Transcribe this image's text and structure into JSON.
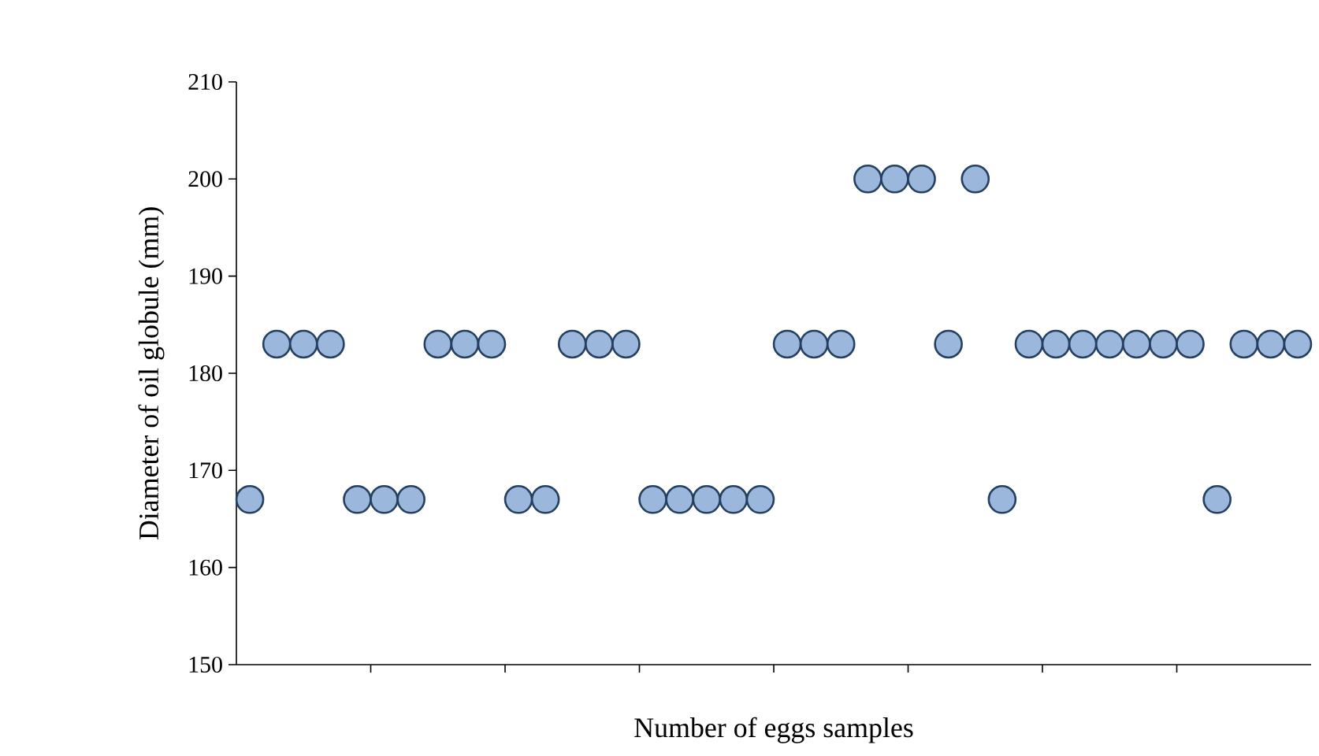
{
  "chart_data": {
    "type": "scatter",
    "xlabel": "Number of eggs samples",
    "ylabel": "Diameter of oil globule (mm)",
    "categories": [
      null,
      null,
      null,
      null,
      null,
      null,
      null,
      null,
      null,
      null,
      null,
      null,
      null,
      null,
      null,
      null,
      null,
      null,
      null,
      null,
      null,
      null,
      null,
      null,
      null,
      null,
      null,
      null,
      null,
      null,
      null,
      null,
      null,
      null,
      null,
      null,
      null,
      null,
      null,
      null
    ],
    "series": [
      {
        "color": "#9bb8dc",
        "values": [
          167,
          183,
          183,
          183,
          167,
          167,
          167,
          183,
          183,
          183,
          167,
          167,
          183,
          183,
          183,
          167,
          167,
          167,
          167,
          167,
          183,
          183,
          183,
          200,
          200,
          200,
          183,
          200,
          167,
          183,
          183,
          183,
          183,
          183,
          183,
          183,
          167,
          183,
          183,
          183
        ]
      }
    ],
    "ylim": [
      150,
      210
    ],
    "yticks": [
      150,
      160,
      170,
      180,
      190,
      200,
      210
    ],
    "marker": "circle",
    "tick_labels": "y",
    "grid": false
  }
}
